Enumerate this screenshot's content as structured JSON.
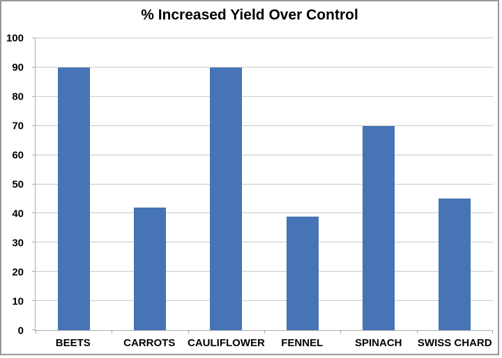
{
  "chart_data": {
    "type": "bar",
    "title": "% Increased Yield Over Control",
    "categories": [
      "BEETS",
      "CARROTS",
      "CAULIFLOWER",
      "FENNEL",
      "SPINACH",
      "SWISS CHARD"
    ],
    "values": [
      90,
      42,
      90,
      39,
      70,
      45
    ],
    "xlabel": "",
    "ylabel": "",
    "ylim": [
      0,
      100
    ],
    "ytick_step": 10,
    "grid": true,
    "legend_position": "none",
    "colors": {
      "bar": "#4674b5",
      "gridline": "#c9c9c9",
      "axis": "#ababab",
      "text": "#000000",
      "background": "#ffffff",
      "frame_border": "#979797"
    }
  }
}
